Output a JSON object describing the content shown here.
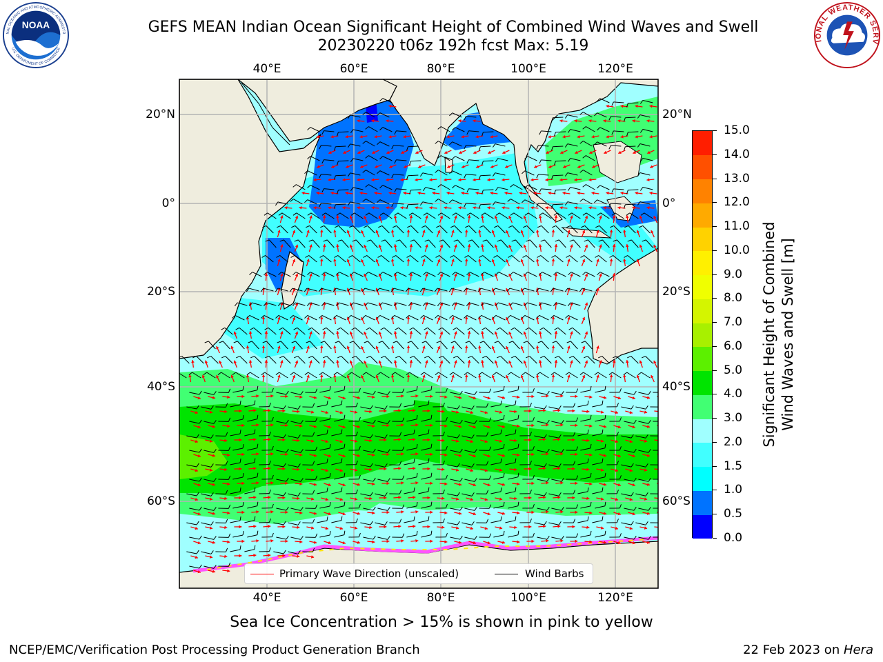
{
  "header": {
    "title": "GEFS MEAN Indian Ocean Significant Height of Combined Wind Waves and Swell",
    "subtitle": "20230220 t06z 192h fcst   Max: 5.19"
  },
  "logos": {
    "left": "NOAA",
    "left_ring": "NATIONAL OCEANIC AND ATMOSPHERIC ADMINISTRATION",
    "left_bottom": "U.S. DEPARTMENT OF COMMERCE",
    "right": "NATIONAL WEATHER SERVICE"
  },
  "axes": {
    "longitude_labels": [
      "40°E",
      "60°E",
      "80°E",
      "100°E",
      "120°E"
    ],
    "latitude_labels": [
      "20°N",
      "0°",
      "20°S",
      "40°S",
      "60°S"
    ]
  },
  "legend": {
    "wave_direction": "Primary Wave Direction (unscaled)",
    "wind_barbs": "Wind Barbs"
  },
  "colorbar": {
    "label_line1": "Significant Height of Combined",
    "label_line2": "Wind Waves and Swell [m]",
    "ticks": [
      "0.0",
      "0.5",
      "1.0",
      "1.5",
      "2.0",
      "3.0",
      "4.0",
      "5.0",
      "6.0",
      "7.0",
      "8.0",
      "9.0",
      "10.0",
      "11.0",
      "12.0",
      "13.0",
      "14.0",
      "15.0"
    ],
    "colors": [
      "#0000ff",
      "#0073ff",
      "#00ffff",
      "#41ffff",
      "#a0ffff",
      "#41ff73",
      "#00e400",
      "#5cf000",
      "#a8f000",
      "#d4f500",
      "#f0ff00",
      "#fff000",
      "#ffd200",
      "#ffaa00",
      "#ff8200",
      "#ff5000",
      "#ff1e00"
    ]
  },
  "field_colors": {
    "land": "#efedde",
    "wave_direction": "#ff0000",
    "wind_barb": "#000000",
    "sea_ice": [
      "#ff55ff",
      "#ff9bc8",
      "#ffe400"
    ]
  },
  "annotations": {
    "ice_note": "Sea Ice Concentration > 15% is shown in pink to yellow",
    "footer_left": "NCEP/EMC/Verification Post Processing Product Generation Branch",
    "footer_date": "22 Feb 2023 on ",
    "footer_machine": "Hera"
  }
}
